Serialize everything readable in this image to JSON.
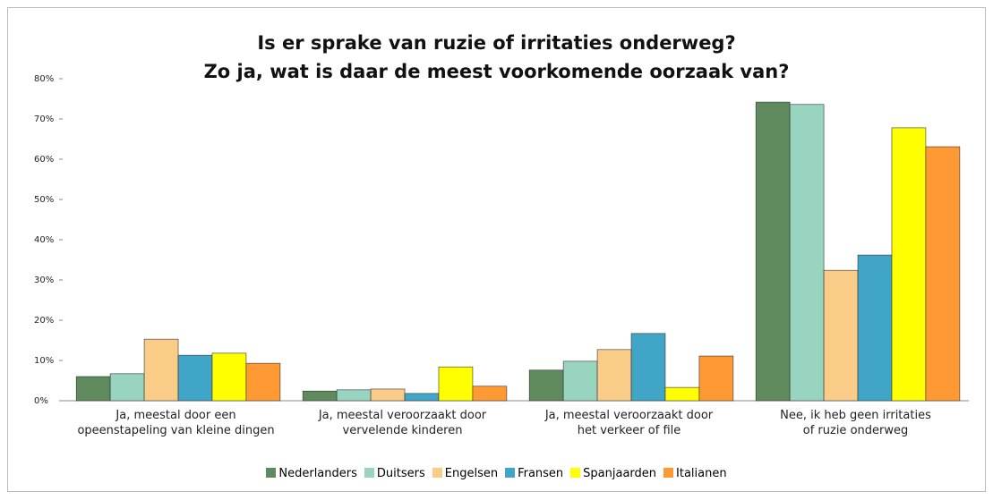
{
  "chart_data": {
    "type": "bar",
    "title": "Is er sprake van ruzie of irritaties onderweg?\nZo ja, wat is daar de meest voorkomende oorzaak van?",
    "categories": [
      "Ja, meestal door een\nopeenstapeling van kleine dingen",
      "Ja, meestal veroorzaakt door\nvervelende kinderen",
      "Ja, meestal veroorzaakt door\nhet verkeer of file",
      "Nee, ik heb geen irritaties\nof ruzie onderweg"
    ],
    "series": [
      {
        "name": "Nederlanders",
        "color": "#5e8a5e",
        "values": [
          6.0,
          2.4,
          7.6,
          74.2
        ]
      },
      {
        "name": "Duitsers",
        "color": "#99d4c0",
        "values": [
          6.7,
          2.7,
          9.8,
          73.6
        ]
      },
      {
        "name": "Engelsen",
        "color": "#f9cc88",
        "values": [
          15.3,
          2.9,
          12.7,
          32.4
        ]
      },
      {
        "name": "Fransen",
        "color": "#41a5c8",
        "values": [
          11.3,
          1.8,
          16.7,
          36.2
        ]
      },
      {
        "name": "Spanjaarden",
        "color": "#ffff00",
        "values": [
          11.8,
          8.4,
          3.3,
          67.8
        ]
      },
      {
        "name": "Italianen",
        "color": "#ff9933",
        "values": [
          9.3,
          3.6,
          11.1,
          63.1
        ]
      }
    ],
    "ylim": [
      0,
      80
    ],
    "yticks": [
      {
        "value": 0,
        "label": "0%"
      },
      {
        "value": 10,
        "label": "10%"
      },
      {
        "value": 20,
        "label": "20%"
      },
      {
        "value": 30,
        "label": "30%"
      },
      {
        "value": 40,
        "label": "40%"
      },
      {
        "value": 50,
        "label": "50%"
      },
      {
        "value": 60,
        "label": "60%"
      },
      {
        "value": 70,
        "label": "70%"
      },
      {
        "value": 80,
        "label": "80%"
      }
    ],
    "grid": false,
    "legend": "bottom"
  }
}
